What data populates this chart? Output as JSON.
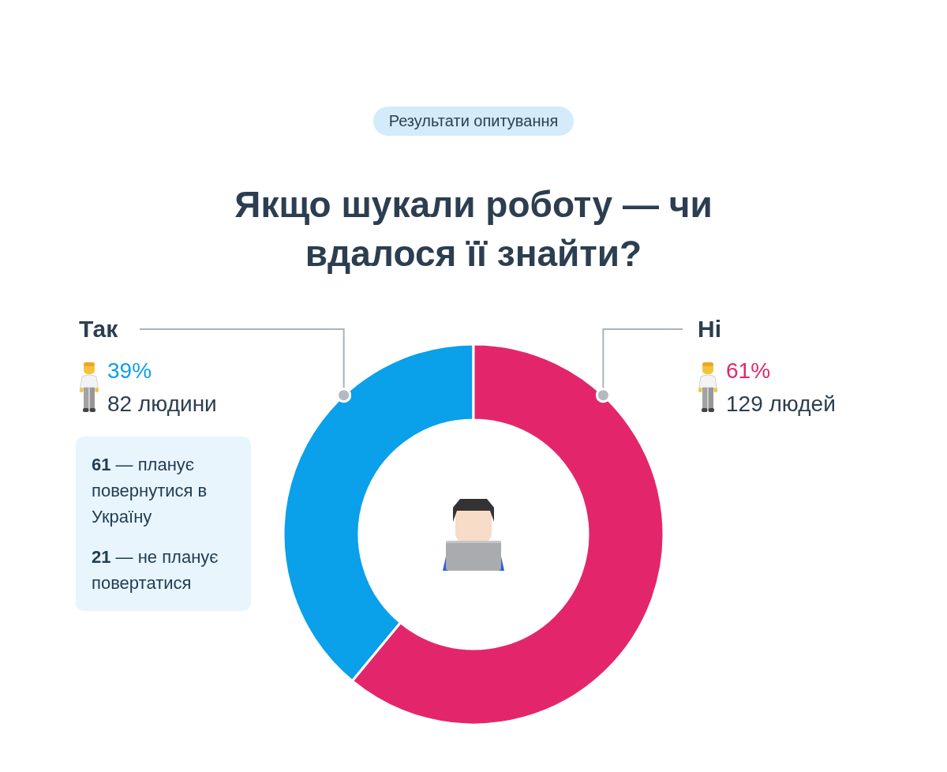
{
  "chart_data": {
    "type": "donut",
    "title": "Якщо шукали роботу — чи вдалося її знайти?",
    "subtitle": "Результати опитування",
    "categories": [
      "Так",
      "Ні"
    ],
    "values": [
      39,
      61
    ],
    "colors": [
      "#0aa0ea",
      "#e3266b"
    ],
    "value_labels": [
      "39%",
      "61%"
    ],
    "annotations": [
      {
        "text": "82 людини",
        "x": "Так"
      },
      {
        "text": "129 людей",
        "x": "Ні"
      },
      "61 — планує повернутися в Україну",
      "21 — не планує повертатися"
    ]
  }
}
